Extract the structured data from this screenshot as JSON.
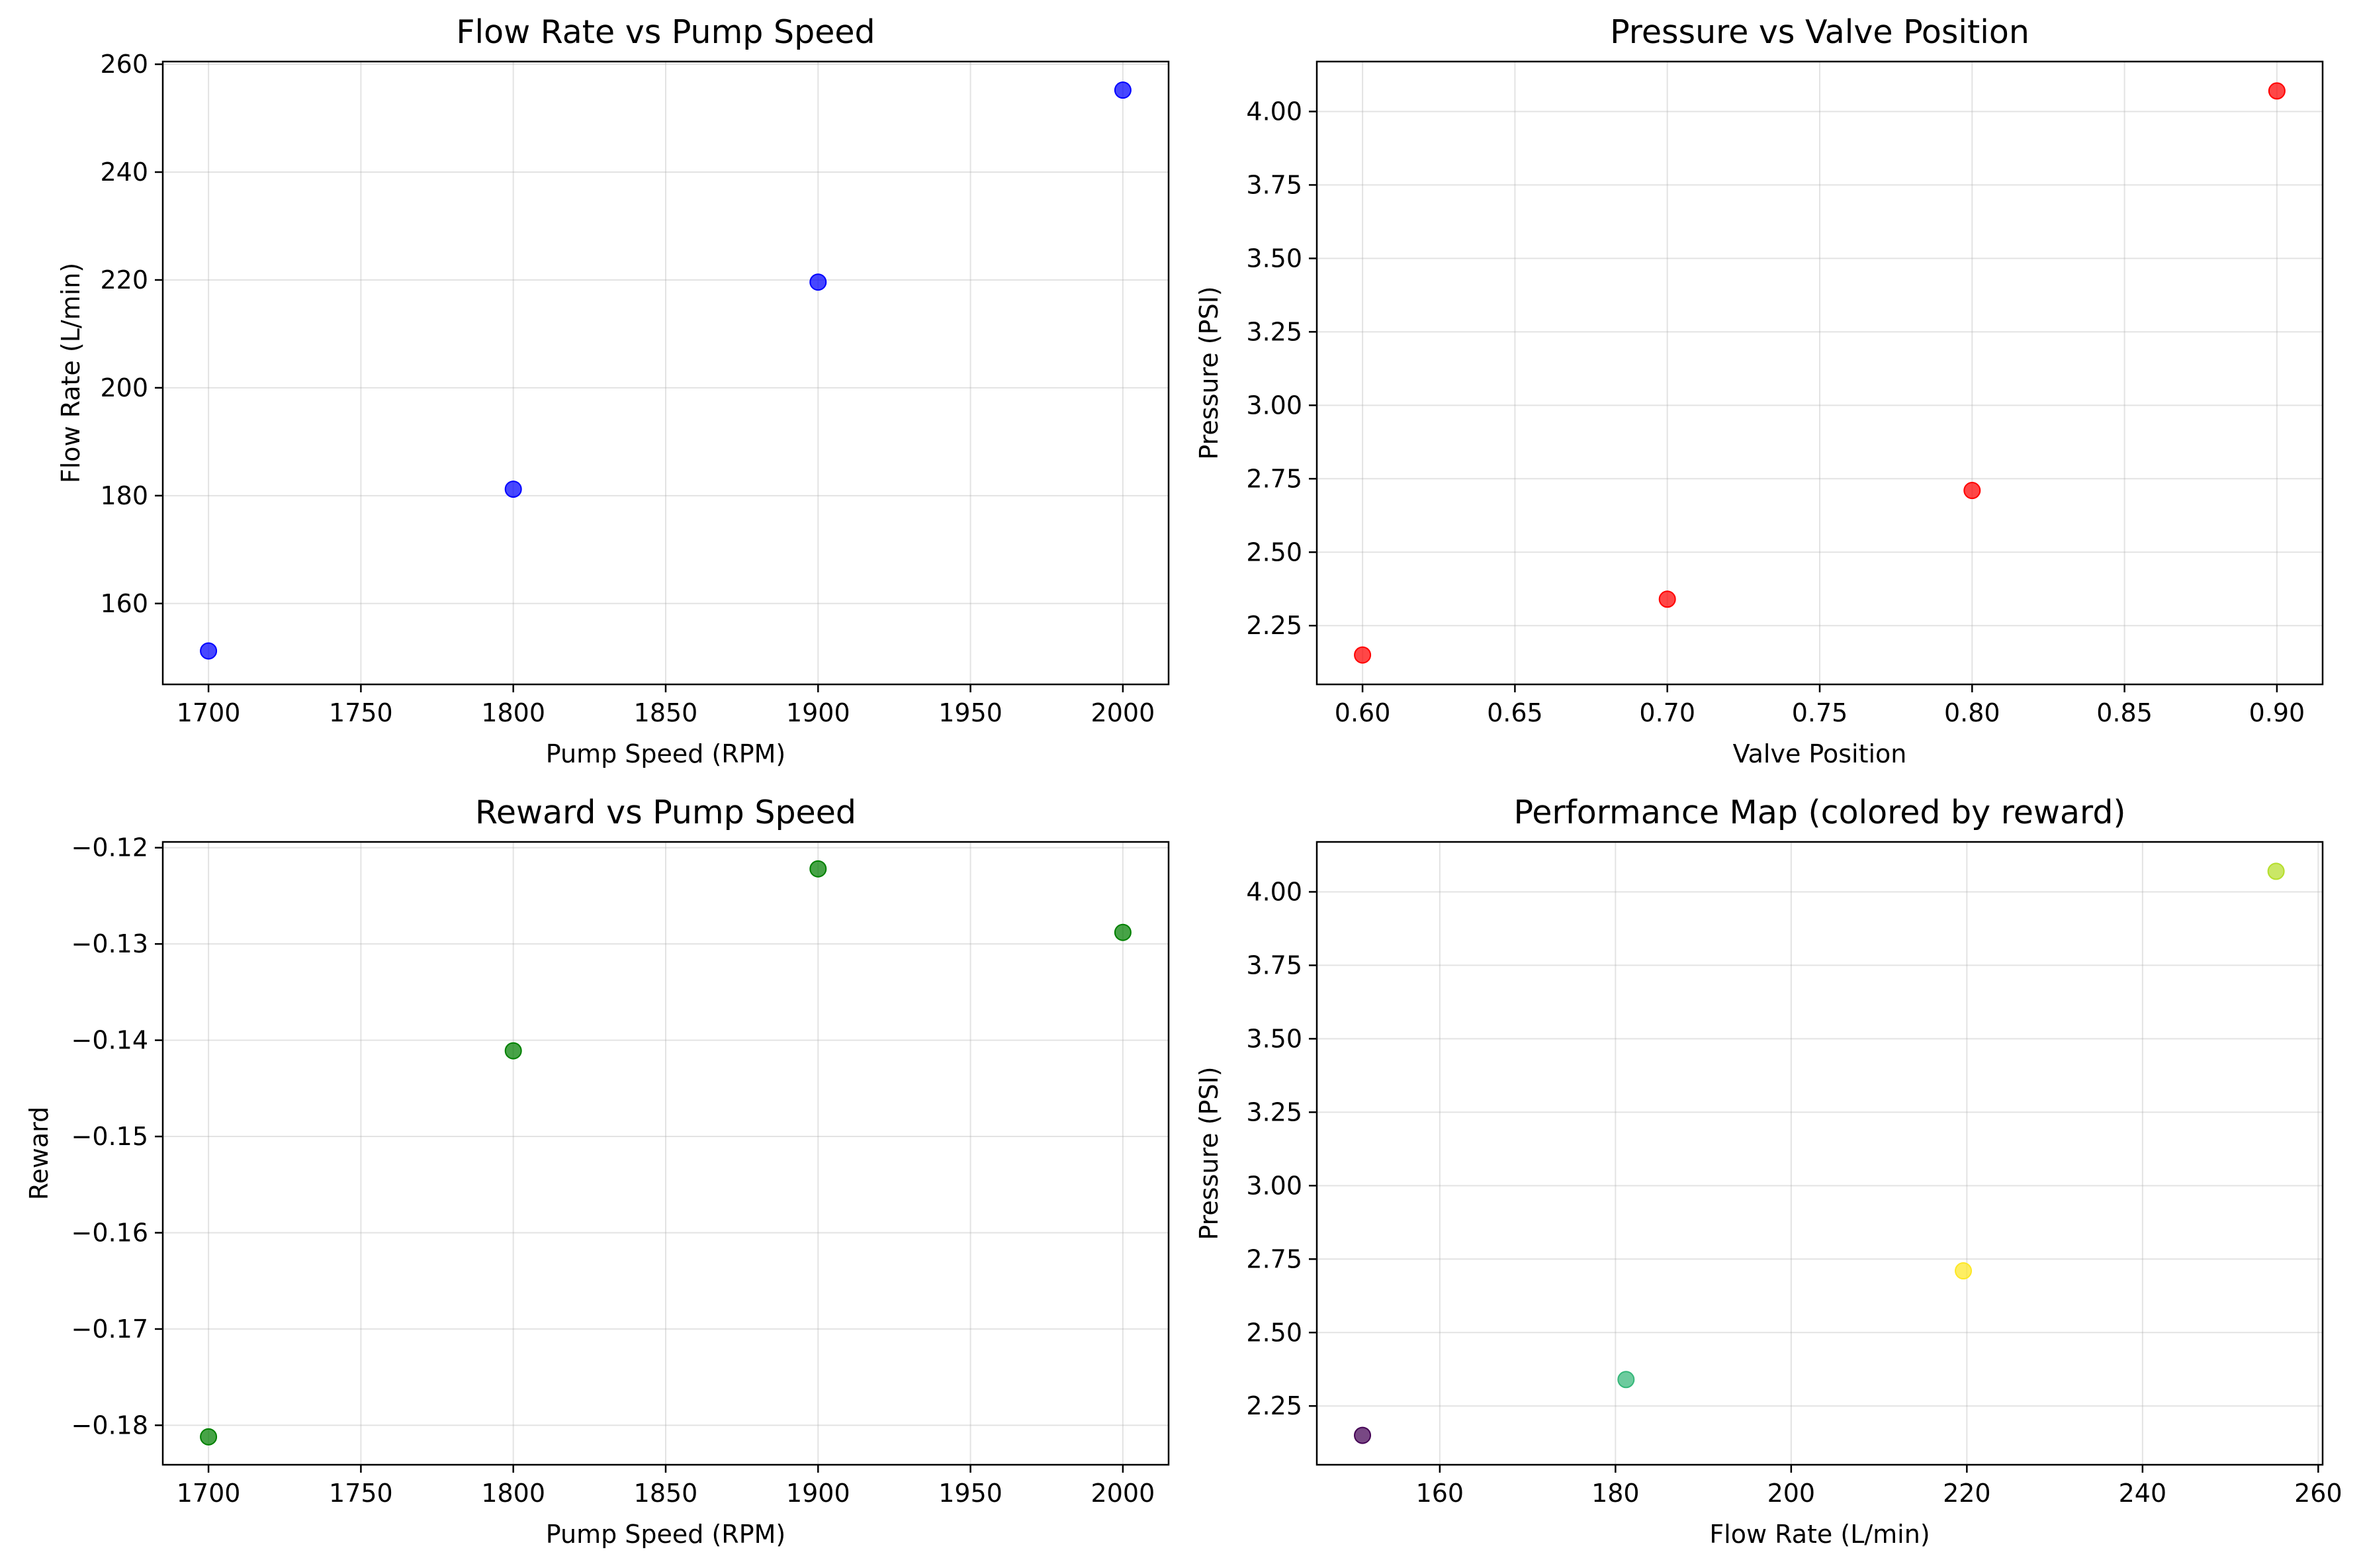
{
  "chart_data": [
    {
      "type": "scatter",
      "title": "Flow Rate vs Pump Speed",
      "xlabel": "Pump Speed (RPM)",
      "ylabel": "Flow Rate (L/min)",
      "xlim": [
        1685,
        2015
      ],
      "ylim": [
        145,
        260.5
      ],
      "xticks": [
        1700,
        1750,
        1800,
        1850,
        1900,
        1950,
        2000
      ],
      "yticks": [
        160,
        180,
        200,
        220,
        240,
        260
      ],
      "xtick_labels": [
        "1700",
        "1750",
        "1800",
        "1850",
        "1900",
        "1950",
        "2000"
      ],
      "ytick_labels": [
        "160",
        "180",
        "200",
        "220",
        "240",
        "260"
      ],
      "grid": true,
      "color": "#0000ff",
      "x": [
        1700,
        1800,
        1900,
        2000
      ],
      "y": [
        151.2,
        181.2,
        219.6,
        255.2
      ]
    },
    {
      "type": "scatter",
      "title": "Pressure vs Valve Position",
      "xlabel": "Valve Position",
      "ylabel": "Pressure (PSI)",
      "xlim": [
        0.585,
        0.915
      ],
      "ylim": [
        2.05,
        4.17
      ],
      "xticks": [
        0.6,
        0.65,
        0.7,
        0.75,
        0.8,
        0.85,
        0.9
      ],
      "yticks": [
        2.25,
        2.5,
        2.75,
        3.0,
        3.25,
        3.5,
        3.75,
        4.0
      ],
      "xtick_labels": [
        "0.60",
        "0.65",
        "0.70",
        "0.75",
        "0.80",
        "0.85",
        "0.90"
      ],
      "ytick_labels": [
        "2.25",
        "2.50",
        "2.75",
        "3.00",
        "3.25",
        "3.50",
        "3.75",
        "4.00"
      ],
      "grid": true,
      "color": "#ff0000",
      "x": [
        0.6,
        0.7,
        0.8,
        0.9
      ],
      "y": [
        2.15,
        2.34,
        2.71,
        4.07
      ]
    },
    {
      "type": "scatter",
      "title": "Reward vs Pump Speed",
      "xlabel": "Pump Speed (RPM)",
      "ylabel": "Reward",
      "xlim": [
        1685,
        2015
      ],
      "ylim": [
        -0.1841,
        -0.1194
      ],
      "xticks": [
        1700,
        1750,
        1800,
        1850,
        1900,
        1950,
        2000
      ],
      "yticks": [
        -0.18,
        -0.17,
        -0.16,
        -0.15,
        -0.14,
        -0.13,
        -0.12
      ],
      "xtick_labels": [
        "1700",
        "1750",
        "1800",
        "1850",
        "1900",
        "1950",
        "2000"
      ],
      "ytick_labels": [
        "−0.18",
        "−0.17",
        "−0.16",
        "−0.15",
        "−0.14",
        "−0.13",
        "−0.12"
      ],
      "grid": true,
      "color": "#008000",
      "x": [
        1700,
        1800,
        1900,
        2000
      ],
      "y": [
        -0.1812,
        -0.1411,
        -0.1222,
        -0.1288
      ]
    },
    {
      "type": "scatter",
      "title": "Performance Map (colored by reward)",
      "xlabel": "Flow Rate (L/min)",
      "ylabel": "Pressure (PSI)",
      "xlim": [
        146,
        260.5
      ],
      "ylim": [
        2.05,
        4.17
      ],
      "xticks": [
        160,
        180,
        200,
        220,
        240,
        260
      ],
      "yticks": [
        2.25,
        2.5,
        2.75,
        3.0,
        3.25,
        3.5,
        3.75,
        4.0
      ],
      "xtick_labels": [
        "160",
        "180",
        "200",
        "220",
        "240",
        "260"
      ],
      "ytick_labels": [
        "2.25",
        "2.50",
        "2.75",
        "3.00",
        "3.25",
        "3.50",
        "3.75",
        "4.00"
      ],
      "grid": true,
      "x": [
        151.2,
        181.2,
        219.6,
        255.2
      ],
      "y": [
        2.15,
        2.34,
        2.71,
        4.07
      ],
      "point_colors": [
        "#440154",
        "#35b779",
        "#fde725",
        "#b5de2b"
      ]
    }
  ]
}
